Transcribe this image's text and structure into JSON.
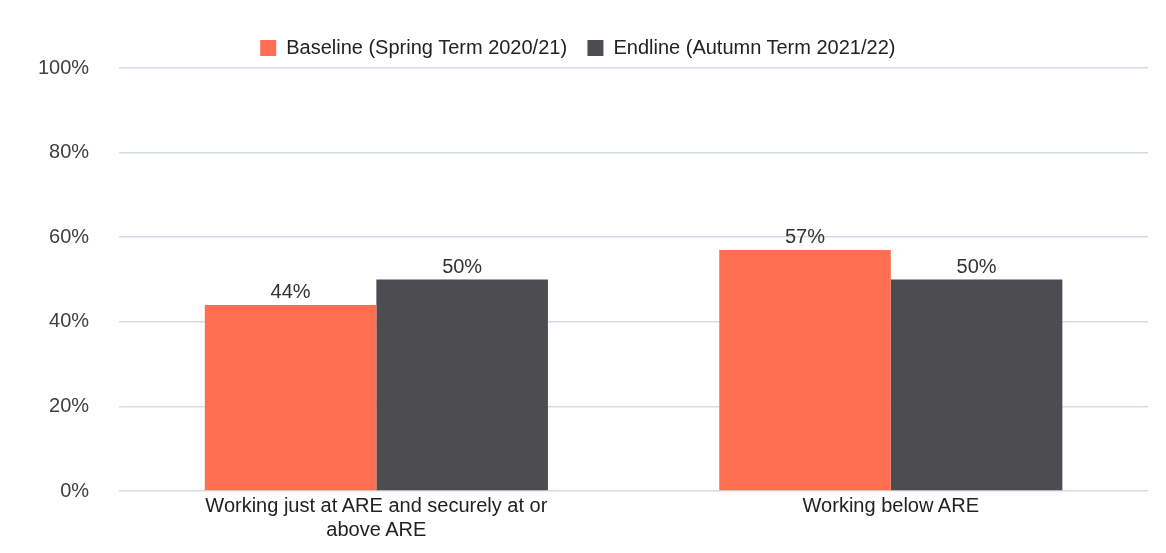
{
  "chart_data": {
    "type": "bar",
    "categories": [
      "Working just at ARE and securely at or above ARE",
      "Working below ARE"
    ],
    "series": [
      {
        "name": "Baseline (Spring Term 2020/21)",
        "color": "#ff6e50",
        "values": [
          44,
          57
        ],
        "value_labels": [
          "44%",
          "57%"
        ]
      },
      {
        "name": "Endline (Autumn Term 2021/22)",
        "color": "#4d4c51",
        "values": [
          50,
          50
        ],
        "value_labels": [
          "50%",
          "50%"
        ]
      }
    ],
    "ylim": [
      0,
      100
    ],
    "yticks": [
      {
        "value": 0,
        "label": "0%"
      },
      {
        "value": 20,
        "label": "20%"
      },
      {
        "value": 40,
        "label": "40%"
      },
      {
        "value": 60,
        "label": "60%"
      },
      {
        "value": 80,
        "label": "80%"
      },
      {
        "value": 100,
        "label": "100%"
      }
    ],
    "grid": "y",
    "legend": "top"
  }
}
